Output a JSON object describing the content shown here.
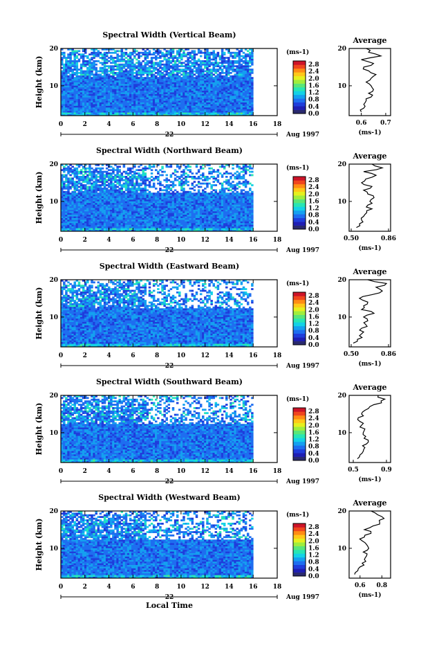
{
  "chart_data": [
    {
      "type": "heatmap",
      "title": "Spectral Width (Vertical Beam)",
      "ylabel": "Height (km)",
      "xlim": [
        0,
        18
      ],
      "ylim": [
        2,
        20
      ],
      "x_ticks": [
        "0",
        "2",
        "4",
        "6",
        "8",
        "10",
        "12",
        "14",
        "16",
        "18"
      ],
      "y_ticks": [
        "10",
        "20"
      ],
      "day_label": "22",
      "month_label": "Aug 1997",
      "colorbar": {
        "unit": "(ms-1)",
        "ticks": [
          "0.0",
          "0.4",
          "0.8",
          "1.2",
          "1.6",
          "2.0",
          "2.4",
          "2.8"
        ],
        "range": [
          0,
          3.0
        ]
      },
      "data_extent_hours": [
        0,
        16
      ],
      "profile": {
        "title": "Average",
        "xlabel": "(ms-1)",
        "xlim": [
          0.55,
          0.72
        ],
        "x_ticks": [
          "0.6",
          "0.7"
        ],
        "y_ticks": [
          "10",
          "20"
        ],
        "heights": [
          3,
          4,
          5,
          6,
          7,
          8,
          9,
          10,
          11,
          12,
          13,
          14,
          15,
          16,
          17,
          18,
          19,
          20
        ],
        "values": [
          0.6,
          0.61,
          0.61,
          0.62,
          0.64,
          0.63,
          0.65,
          0.64,
          0.62,
          0.64,
          0.66,
          0.63,
          0.61,
          0.65,
          0.6,
          0.68,
          0.63,
          0.62
        ]
      }
    },
    {
      "type": "heatmap",
      "title": "Spectral Width (Northward Beam)",
      "ylabel": "Height (km)",
      "xlim": [
        0,
        18
      ],
      "ylim": [
        2,
        20
      ],
      "x_ticks": [
        "0",
        "2",
        "4",
        "6",
        "8",
        "10",
        "12",
        "14",
        "16",
        "18"
      ],
      "y_ticks": [
        "10",
        "20"
      ],
      "day_label": "22",
      "month_label": "Aug 1997",
      "colorbar": {
        "unit": "(ms-1)",
        "ticks": [
          "0.0",
          "0.4",
          "0.8",
          "1.2",
          "1.6",
          "2.0",
          "2.4",
          "2.8"
        ],
        "range": [
          0,
          3.0
        ]
      },
      "data_extent_hours": [
        0,
        16
      ],
      "profile": {
        "title": "Average",
        "xlabel": "(ms-1)",
        "xlim": [
          0.48,
          0.88
        ],
        "x_ticks": [
          "0.50",
          "0.86"
        ],
        "y_ticks": [
          "10",
          "20"
        ],
        "heights": [
          3,
          4,
          5,
          6,
          7,
          8,
          9,
          10,
          11,
          12,
          13,
          14,
          15,
          16,
          17,
          18,
          19,
          20
        ],
        "values": [
          0.55,
          0.58,
          0.6,
          0.62,
          0.65,
          0.7,
          0.66,
          0.68,
          0.72,
          0.66,
          0.62,
          0.7,
          0.6,
          0.64,
          0.74,
          0.62,
          0.8,
          0.7
        ]
      }
    },
    {
      "type": "heatmap",
      "title": "Spectral Width (Eastward Beam)",
      "ylabel": "Height (km)",
      "xlim": [
        0,
        18
      ],
      "ylim": [
        2,
        20
      ],
      "x_ticks": [
        "0",
        "2",
        "4",
        "6",
        "8",
        "10",
        "12",
        "14",
        "16",
        "18"
      ],
      "y_ticks": [
        "10",
        "20"
      ],
      "day_label": "22",
      "month_label": "Aug 1997",
      "colorbar": {
        "unit": "(ms-1)",
        "ticks": [
          "0.0",
          "0.4",
          "0.8",
          "1.2",
          "1.6",
          "2.0",
          "2.4",
          "2.8"
        ],
        "range": [
          0,
          3.0
        ]
      },
      "data_extent_hours": [
        0,
        16
      ],
      "profile": {
        "title": "Average",
        "xlabel": "(ms-1)",
        "xlim": [
          0.48,
          0.88
        ],
        "x_ticks": [
          "0.50",
          "0.86"
        ],
        "y_ticks": [
          "10",
          "20"
        ],
        "heights": [
          3,
          4,
          5,
          6,
          7,
          8,
          9,
          10,
          11,
          12,
          13,
          14,
          15,
          16,
          17,
          18,
          19,
          20
        ],
        "values": [
          0.52,
          0.56,
          0.58,
          0.62,
          0.6,
          0.64,
          0.66,
          0.62,
          0.72,
          0.6,
          0.62,
          0.66,
          0.58,
          0.7,
          0.8,
          0.74,
          0.84,
          0.66
        ]
      }
    },
    {
      "type": "heatmap",
      "title": "Spectral Width (Southward Beam)",
      "ylabel": "Height (km)",
      "xlim": [
        0,
        18
      ],
      "ylim": [
        2,
        20
      ],
      "x_ticks": [
        "0",
        "2",
        "4",
        "6",
        "8",
        "10",
        "12",
        "14",
        "16",
        "18"
      ],
      "y_ticks": [
        "10",
        "20"
      ],
      "day_label": "22",
      "month_label": "Aug 1997",
      "colorbar": {
        "unit": "(ms-1)",
        "ticks": [
          "0.0",
          "0.4",
          "0.8",
          "1.2",
          "1.6",
          "2.0",
          "2.4",
          "2.8"
        ],
        "range": [
          0,
          3.0
        ]
      },
      "data_extent_hours": [
        0,
        16
      ],
      "profile": {
        "title": "Average",
        "xlabel": "(ms-1)",
        "xlim": [
          0.45,
          0.95
        ],
        "x_ticks": [
          "0.5",
          "0.9"
        ],
        "y_ticks": [
          "10",
          "20"
        ],
        "heights": [
          3,
          4,
          5,
          6,
          7,
          8,
          9,
          10,
          11,
          12,
          13,
          14,
          15,
          16,
          17,
          18,
          19,
          20
        ],
        "values": [
          0.55,
          0.58,
          0.62,
          0.64,
          0.66,
          0.68,
          0.65,
          0.62,
          0.64,
          0.6,
          0.58,
          0.56,
          0.6,
          0.64,
          0.7,
          0.84,
          0.88,
          0.8
        ]
      }
    },
    {
      "type": "heatmap",
      "title": "Spectral Width (Westward Beam)",
      "ylabel": "Height (km)",
      "xlim": [
        0,
        18
      ],
      "ylim": [
        2,
        20
      ],
      "x_ticks": [
        "0",
        "2",
        "4",
        "6",
        "8",
        "10",
        "12",
        "14",
        "16",
        "18"
      ],
      "y_ticks": [
        "10",
        "20"
      ],
      "day_label": "22",
      "month_label": "Aug 1997",
      "colorbar": {
        "unit": "(ms-1)",
        "ticks": [
          "0.0",
          "0.4",
          "0.8",
          "1.2",
          "1.6",
          "2.0",
          "2.4",
          "2.8"
        ],
        "range": [
          0,
          3.0
        ]
      },
      "data_extent_hours": [
        0,
        16
      ],
      "profile": {
        "title": "Average",
        "xlabel": "(ms-1)",
        "xlim": [
          0.5,
          0.88
        ],
        "x_ticks": [
          "0.6",
          "0.8"
        ],
        "y_ticks": [
          "10",
          "20"
        ],
        "heights": [
          3,
          4,
          5,
          6,
          7,
          8,
          9,
          10,
          11,
          12,
          13,
          14,
          15,
          16,
          17,
          18,
          19,
          20
        ],
        "values": [
          0.55,
          0.58,
          0.6,
          0.62,
          0.64,
          0.66,
          0.63,
          0.68,
          0.66,
          0.62,
          0.64,
          0.7,
          0.64,
          0.72,
          0.78,
          0.82,
          0.76,
          0.7
        ]
      }
    }
  ],
  "xlabel": "Local Time",
  "colors": {
    "colormap": [
      "#2a2a6e",
      "#1e1eb4",
      "#1f3ddc",
      "#1e6ef0",
      "#15a0f0",
      "#14d2e6",
      "#28e6b4",
      "#5ae678",
      "#a0ee3c",
      "#e6f01e",
      "#ffc818",
      "#ff8c14",
      "#f0461e",
      "#cd1428"
    ],
    "line": "#000000"
  }
}
